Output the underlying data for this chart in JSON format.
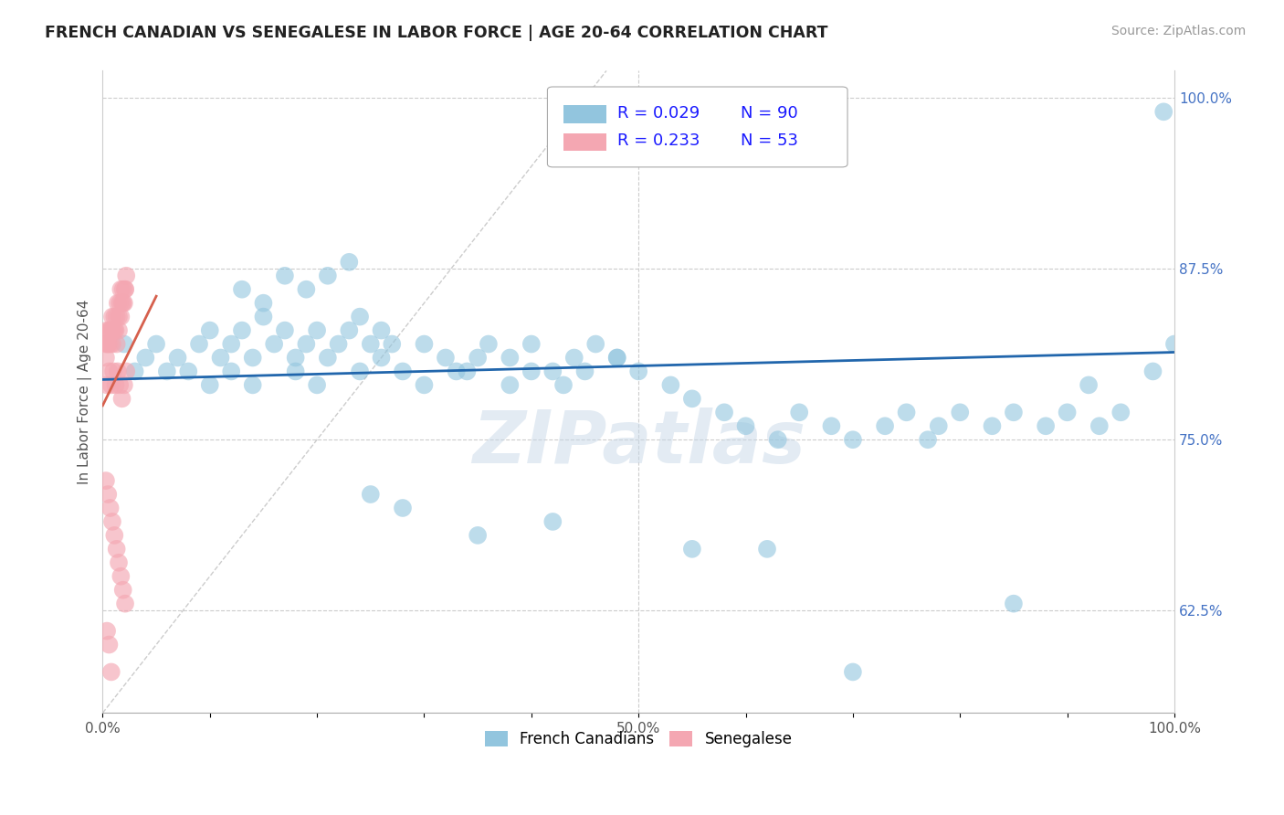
{
  "title": "FRENCH CANADIAN VS SENEGALESE IN LABOR FORCE | AGE 20-64 CORRELATION CHART",
  "source_text": "Source: ZipAtlas.com",
  "ylabel": "In Labor Force | Age 20-64",
  "xlim": [
    0.0,
    1.0
  ],
  "ylim": [
    0.55,
    1.02
  ],
  "yticks": [
    0.625,
    0.75,
    0.875,
    1.0
  ],
  "ytick_labels": [
    "62.5%",
    "75.0%",
    "87.5%",
    "100.0%"
  ],
  "xticks": [
    0.0,
    0.1,
    0.2,
    0.3,
    0.4,
    0.5,
    0.6,
    0.7,
    0.8,
    0.9,
    1.0
  ],
  "xtick_labels_major": [
    "0.0%",
    "",
    "",
    "",
    "",
    "50.0%",
    "",
    "",
    "",
    "",
    "100.0%"
  ],
  "legend_R_blue": "R = 0.029",
  "legend_N_blue": "N = 90",
  "legend_R_pink": "R = 0.233",
  "legend_N_pink": "N = 53",
  "blue_color": "#92c5de",
  "pink_color": "#f4a7b2",
  "trend_blue_color": "#2166ac",
  "trend_pink_color": "#d6604d",
  "diagonal_color": "#cccccc",
  "watermark": "ZIPatlas",
  "blue_scatter_x": [
    0.02,
    0.03,
    0.04,
    0.05,
    0.06,
    0.07,
    0.08,
    0.09,
    0.1,
    0.11,
    0.12,
    0.13,
    0.14,
    0.15,
    0.16,
    0.17,
    0.18,
    0.19,
    0.2,
    0.21,
    0.22,
    0.23,
    0.24,
    0.25,
    0.26,
    0.27,
    0.13,
    0.15,
    0.17,
    0.19,
    0.21,
    0.23,
    0.1,
    0.12,
    0.14,
    0.18,
    0.2,
    0.24,
    0.26,
    0.28,
    0.3,
    0.32,
    0.34,
    0.36,
    0.38,
    0.4,
    0.42,
    0.44,
    0.46,
    0.48,
    0.3,
    0.33,
    0.35,
    0.38,
    0.4,
    0.43,
    0.45,
    0.48,
    0.5,
    0.53,
    0.55,
    0.58,
    0.6,
    0.63,
    0.65,
    0.68,
    0.7,
    0.73,
    0.75,
    0.78,
    0.8,
    0.83,
    0.85,
    0.88,
    0.9,
    0.93,
    0.95,
    0.98,
    0.99,
    1.0,
    0.25,
    0.28,
    0.35,
    0.42,
    0.55,
    0.62,
    0.7,
    0.77,
    0.85,
    0.92
  ],
  "blue_scatter_y": [
    0.82,
    0.8,
    0.81,
    0.82,
    0.8,
    0.81,
    0.8,
    0.82,
    0.83,
    0.81,
    0.82,
    0.83,
    0.81,
    0.84,
    0.82,
    0.83,
    0.81,
    0.82,
    0.83,
    0.81,
    0.82,
    0.83,
    0.84,
    0.82,
    0.83,
    0.82,
    0.86,
    0.85,
    0.87,
    0.86,
    0.87,
    0.88,
    0.79,
    0.8,
    0.79,
    0.8,
    0.79,
    0.8,
    0.81,
    0.8,
    0.82,
    0.81,
    0.8,
    0.82,
    0.81,
    0.82,
    0.8,
    0.81,
    0.82,
    0.81,
    0.79,
    0.8,
    0.81,
    0.79,
    0.8,
    0.79,
    0.8,
    0.81,
    0.8,
    0.79,
    0.78,
    0.77,
    0.76,
    0.75,
    0.77,
    0.76,
    0.75,
    0.76,
    0.77,
    0.76,
    0.77,
    0.76,
    0.77,
    0.76,
    0.77,
    0.76,
    0.77,
    0.8,
    0.99,
    0.82,
    0.71,
    0.7,
    0.68,
    0.69,
    0.67,
    0.67,
    0.58,
    0.75,
    0.63,
    0.79
  ],
  "pink_scatter_x": [
    0.003,
    0.004,
    0.005,
    0.006,
    0.007,
    0.008,
    0.009,
    0.01,
    0.011,
    0.012,
    0.013,
    0.014,
    0.015,
    0.016,
    0.017,
    0.018,
    0.019,
    0.02,
    0.021,
    0.022,
    0.003,
    0.005,
    0.007,
    0.009,
    0.011,
    0.013,
    0.015,
    0.017,
    0.019,
    0.021,
    0.004,
    0.006,
    0.008,
    0.01,
    0.012,
    0.014,
    0.016,
    0.018,
    0.02,
    0.022,
    0.003,
    0.005,
    0.007,
    0.009,
    0.011,
    0.013,
    0.015,
    0.017,
    0.019,
    0.021,
    0.004,
    0.006,
    0.008
  ],
  "pink_scatter_y": [
    0.82,
    0.83,
    0.82,
    0.83,
    0.82,
    0.83,
    0.84,
    0.83,
    0.84,
    0.83,
    0.84,
    0.85,
    0.84,
    0.85,
    0.86,
    0.85,
    0.86,
    0.85,
    0.86,
    0.87,
    0.81,
    0.82,
    0.83,
    0.82,
    0.83,
    0.82,
    0.83,
    0.84,
    0.85,
    0.86,
    0.79,
    0.8,
    0.79,
    0.8,
    0.79,
    0.8,
    0.79,
    0.78,
    0.79,
    0.8,
    0.72,
    0.71,
    0.7,
    0.69,
    0.68,
    0.67,
    0.66,
    0.65,
    0.64,
    0.63,
    0.61,
    0.6,
    0.58
  ],
  "blue_trend_x": [
    0.0,
    1.0
  ],
  "blue_trend_y": [
    0.794,
    0.814
  ],
  "pink_trend_x": [
    0.0,
    0.05
  ],
  "pink_trend_y": [
    0.775,
    0.855
  ]
}
